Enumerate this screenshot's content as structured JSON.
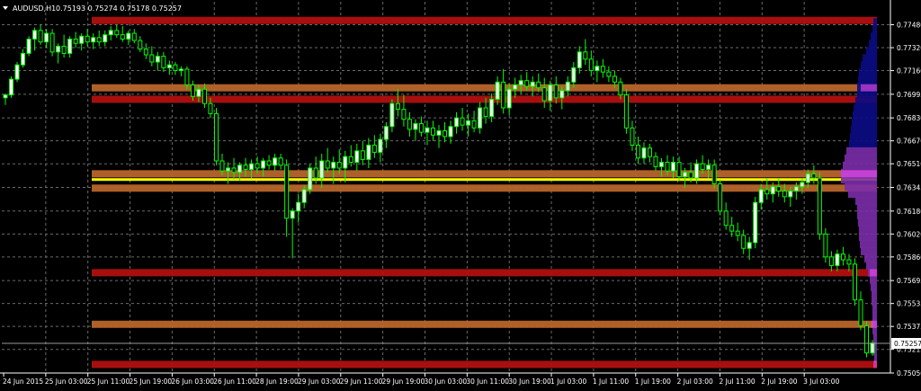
{
  "chart_header": {
    "symbol": "AUDUSD,H1",
    "ohlc": "0.75193 0.75274 0.75178 0.75257",
    "menu_icon": "triangle-down-icon"
  },
  "colors": {
    "background": "#000000",
    "grid": "#6b6b6b",
    "candle": "#00ff00",
    "bull_body": "#ffffff",
    "bear_body": "#000000",
    "orange_level": "#b8652a",
    "red_level": "#b01010",
    "yellow_level": "#ffff00",
    "profile_navy": "#0b0b85",
    "profile_purple": "#7a2ca8",
    "profile_pink": "#ff4fff",
    "axis_text": "#ffffff"
  },
  "chart_data": {
    "type": "candlestick",
    "grid": true,
    "ylim": [
      0.7505,
      0.7764
    ],
    "y_ticks": [
      "0.77480",
      "0.77320",
      "0.77160",
      "0.76995",
      "0.76830",
      "0.76670",
      "0.76510",
      "0.76345",
      "0.76180",
      "0.76020",
      "0.75860",
      "0.75695",
      "0.75535",
      "0.75375",
      "0.75215",
      "0.75050"
    ],
    "current_price": "0.75257",
    "x_ticks": [
      "24 Jun 2015",
      "25 Jun 03:00",
      "25 Jun 11:00",
      "25 Jun 19:00",
      "26 Jun 03:00",
      "26 Jun 11:00",
      "28 Jun 19:00",
      "29 Jun 03:00",
      "29 Jun 11:00",
      "29 Jun 19:00",
      "30 Jun 03:00",
      "30 Jun 11:00",
      "30 Jun 19:00",
      "1 Jul 03:00",
      "1 Jul 11:00",
      "1 Jul 19:00",
      "2 Jul 03:00",
      "2 Jul 11:00",
      "2 Jul 19:00",
      "3 Jul 03:00"
    ],
    "levels": [
      {
        "price": 0.7751,
        "color": "red"
      },
      {
        "price": 0.7704,
        "color": "orange"
      },
      {
        "price": 0.7696,
        "color": "red"
      },
      {
        "price": 0.7644,
        "color": "orange"
      },
      {
        "price": 0.764,
        "color": "yellow"
      },
      {
        "price": 0.7634,
        "color": "orange"
      },
      {
        "price": 0.7575,
        "color": "red"
      },
      {
        "price": 0.7539,
        "color": "orange"
      },
      {
        "price": 0.7511,
        "color": "red"
      }
    ],
    "candles": [
      [
        0.7697,
        0.77,
        0.7692,
        0.7699
      ],
      [
        0.7699,
        0.7712,
        0.7697,
        0.771
      ],
      [
        0.771,
        0.7722,
        0.7708,
        0.772
      ],
      [
        0.772,
        0.7731,
        0.7718,
        0.7728
      ],
      [
        0.7728,
        0.774,
        0.7726,
        0.7738
      ],
      [
        0.7738,
        0.7746,
        0.773,
        0.7744
      ],
      [
        0.7744,
        0.7748,
        0.7734,
        0.7736
      ],
      [
        0.7736,
        0.7745,
        0.7732,
        0.7742
      ],
      [
        0.7742,
        0.7745,
        0.7726,
        0.7729
      ],
      [
        0.7729,
        0.7735,
        0.7721,
        0.7733
      ],
      [
        0.7733,
        0.7741,
        0.7725,
        0.7728
      ],
      [
        0.7728,
        0.774,
        0.7725,
        0.7738
      ],
      [
        0.7738,
        0.7743,
        0.7732,
        0.7735
      ],
      [
        0.7735,
        0.7742,
        0.773,
        0.774
      ],
      [
        0.774,
        0.7745,
        0.7733,
        0.7736
      ],
      [
        0.7736,
        0.7742,
        0.7731,
        0.7739
      ],
      [
        0.7739,
        0.7744,
        0.7733,
        0.7736
      ],
      [
        0.7736,
        0.7744,
        0.7733,
        0.7741
      ],
      [
        0.7741,
        0.7747,
        0.7737,
        0.7744
      ],
      [
        0.7744,
        0.7748,
        0.7739,
        0.7741
      ],
      [
        0.7741,
        0.7747,
        0.7736,
        0.7738
      ],
      [
        0.7738,
        0.7744,
        0.7734,
        0.7742
      ],
      [
        0.7742,
        0.7745,
        0.7735,
        0.7737
      ],
      [
        0.7737,
        0.774,
        0.7729,
        0.7731
      ],
      [
        0.7731,
        0.7735,
        0.7724,
        0.7727
      ],
      [
        0.7727,
        0.7733,
        0.7719,
        0.7722
      ],
      [
        0.7722,
        0.7729,
        0.7716,
        0.7726
      ],
      [
        0.7726,
        0.7729,
        0.7715,
        0.7718
      ],
      [
        0.7718,
        0.7723,
        0.7713,
        0.772
      ],
      [
        0.772,
        0.7722,
        0.7713,
        0.7716
      ],
      [
        0.7716,
        0.7719,
        0.7712,
        0.7717
      ],
      [
        0.7717,
        0.7719,
        0.7703,
        0.7706
      ],
      [
        0.7706,
        0.7709,
        0.7695,
        0.7698
      ],
      [
        0.7698,
        0.7706,
        0.7694,
        0.7703
      ],
      [
        0.7703,
        0.7707,
        0.769,
        0.7693
      ],
      [
        0.7693,
        0.7697,
        0.7683,
        0.7686
      ],
      [
        0.7686,
        0.769,
        0.765,
        0.7653
      ],
      [
        0.7653,
        0.7658,
        0.7643,
        0.7646
      ],
      [
        0.7646,
        0.7652,
        0.7637,
        0.7648
      ],
      [
        0.7648,
        0.7655,
        0.764,
        0.7645
      ],
      [
        0.7645,
        0.7652,
        0.7639,
        0.765
      ],
      [
        0.765,
        0.7655,
        0.7642,
        0.7647
      ],
      [
        0.7647,
        0.7654,
        0.7641,
        0.7651
      ],
      [
        0.7651,
        0.7656,
        0.7644,
        0.7648
      ],
      [
        0.7648,
        0.7655,
        0.7642,
        0.7653
      ],
      [
        0.7653,
        0.7657,
        0.7647,
        0.765
      ],
      [
        0.765,
        0.7658,
        0.7646,
        0.7655
      ],
      [
        0.7655,
        0.7658,
        0.7647,
        0.765
      ],
      [
        0.765,
        0.7654,
        0.76,
        0.7613
      ],
      [
        0.7613,
        0.762,
        0.7585,
        0.7618
      ],
      [
        0.7618,
        0.763,
        0.761,
        0.7624
      ],
      [
        0.7624,
        0.7636,
        0.762,
        0.7633
      ],
      [
        0.7633,
        0.7651,
        0.763,
        0.7648
      ],
      [
        0.7648,
        0.7656,
        0.7637,
        0.7641
      ],
      [
        0.7641,
        0.7658,
        0.7634,
        0.7653
      ],
      [
        0.7653,
        0.7662,
        0.7645,
        0.7648
      ],
      [
        0.7648,
        0.7656,
        0.7637,
        0.7652
      ],
      [
        0.7652,
        0.7661,
        0.7644,
        0.7648
      ],
      [
        0.7648,
        0.766,
        0.7638,
        0.7656
      ],
      [
        0.7656,
        0.7664,
        0.7649,
        0.7652
      ],
      [
        0.7652,
        0.7665,
        0.7646,
        0.766
      ],
      [
        0.766,
        0.7667,
        0.765,
        0.7654
      ],
      [
        0.7654,
        0.7669,
        0.7648,
        0.7664
      ],
      [
        0.7664,
        0.7671,
        0.7655,
        0.7659
      ],
      [
        0.7659,
        0.7672,
        0.7652,
        0.7668
      ],
      [
        0.7668,
        0.768,
        0.7662,
        0.7677
      ],
      [
        0.7677,
        0.7696,
        0.7673,
        0.7693
      ],
      [
        0.7693,
        0.7703,
        0.7684,
        0.7689
      ],
      [
        0.7689,
        0.7699,
        0.7677,
        0.7682
      ],
      [
        0.7682,
        0.7687,
        0.767,
        0.7675
      ],
      [
        0.7675,
        0.7682,
        0.7667,
        0.7679
      ],
      [
        0.7679,
        0.7684,
        0.767,
        0.7673
      ],
      [
        0.7673,
        0.7681,
        0.7664,
        0.7676
      ],
      [
        0.7676,
        0.7681,
        0.7667,
        0.7671
      ],
      [
        0.7671,
        0.7678,
        0.7662,
        0.7674
      ],
      [
        0.7674,
        0.768,
        0.7666,
        0.767
      ],
      [
        0.767,
        0.7681,
        0.7665,
        0.7677
      ],
      [
        0.7677,
        0.7687,
        0.7672,
        0.7683
      ],
      [
        0.7683,
        0.769,
        0.7674,
        0.7678
      ],
      [
        0.7678,
        0.7686,
        0.767,
        0.7681
      ],
      [
        0.7681,
        0.7688,
        0.7673,
        0.7676
      ],
      [
        0.7676,
        0.7694,
        0.7672,
        0.769
      ],
      [
        0.769,
        0.7697,
        0.7679,
        0.7684
      ],
      [
        0.7684,
        0.77,
        0.768,
        0.7696
      ],
      [
        0.7696,
        0.7712,
        0.7692,
        0.7708
      ],
      [
        0.7708,
        0.7717,
        0.7686,
        0.769
      ],
      [
        0.769,
        0.7707,
        0.7685,
        0.7703
      ],
      [
        0.7703,
        0.7711,
        0.7697,
        0.7706
      ],
      [
        0.7706,
        0.7713,
        0.77,
        0.7709
      ],
      [
        0.7709,
        0.7715,
        0.7702,
        0.7705
      ],
      [
        0.7705,
        0.7712,
        0.7698,
        0.7708
      ],
      [
        0.7708,
        0.7714,
        0.7701,
        0.7704
      ],
      [
        0.7704,
        0.7711,
        0.769,
        0.7695
      ],
      [
        0.7695,
        0.7709,
        0.7688,
        0.7706
      ],
      [
        0.7706,
        0.7712,
        0.7693,
        0.7697
      ],
      [
        0.7697,
        0.7705,
        0.7689,
        0.7702
      ],
      [
        0.7702,
        0.7712,
        0.7698,
        0.7708
      ],
      [
        0.7708,
        0.7722,
        0.7704,
        0.7718
      ],
      [
        0.7718,
        0.7733,
        0.7714,
        0.7729
      ],
      [
        0.7729,
        0.7738,
        0.772,
        0.7724
      ],
      [
        0.7724,
        0.773,
        0.7712,
        0.7716
      ],
      [
        0.7716,
        0.7723,
        0.7708,
        0.7719
      ],
      [
        0.7719,
        0.7724,
        0.7711,
        0.7715
      ],
      [
        0.7715,
        0.7719,
        0.7708,
        0.7712
      ],
      [
        0.7712,
        0.7716,
        0.7704,
        0.7708
      ],
      [
        0.7708,
        0.7711,
        0.7696,
        0.7699
      ],
      [
        0.7699,
        0.7703,
        0.7672,
        0.7676
      ],
      [
        0.7676,
        0.7681,
        0.766,
        0.7664
      ],
      [
        0.7664,
        0.767,
        0.7651,
        0.7655
      ],
      [
        0.7655,
        0.7666,
        0.7651,
        0.7662
      ],
      [
        0.7662,
        0.7665,
        0.7652,
        0.7656
      ],
      [
        0.7656,
        0.7659,
        0.7646,
        0.7649
      ],
      [
        0.7649,
        0.7655,
        0.7642,
        0.7652
      ],
      [
        0.7652,
        0.7657,
        0.7643,
        0.7646
      ],
      [
        0.7646,
        0.7656,
        0.7641,
        0.7652
      ],
      [
        0.7652,
        0.7656,
        0.7639,
        0.7642
      ],
      [
        0.7642,
        0.7648,
        0.7634,
        0.7645
      ],
      [
        0.7645,
        0.7652,
        0.7638,
        0.7641
      ],
      [
        0.7641,
        0.7654,
        0.7637,
        0.7651
      ],
      [
        0.7651,
        0.7657,
        0.7644,
        0.7647
      ],
      [
        0.7647,
        0.7654,
        0.7641,
        0.765
      ],
      [
        0.765,
        0.7654,
        0.7634,
        0.7637
      ],
      [
        0.7637,
        0.764,
        0.7615,
        0.7618
      ],
      [
        0.7618,
        0.7624,
        0.7605,
        0.7608
      ],
      [
        0.7608,
        0.7614,
        0.76,
        0.7604
      ],
      [
        0.7604,
        0.761,
        0.7597,
        0.7601
      ],
      [
        0.7601,
        0.7605,
        0.7588,
        0.7592
      ],
      [
        0.7592,
        0.76,
        0.7584,
        0.7596
      ],
      [
        0.7596,
        0.7628,
        0.7592,
        0.7624
      ],
      [
        0.7624,
        0.7637,
        0.7619,
        0.7633
      ],
      [
        0.7633,
        0.7641,
        0.7626,
        0.763
      ],
      [
        0.763,
        0.7638,
        0.7624,
        0.7635
      ],
      [
        0.7635,
        0.7641,
        0.7628,
        0.7632
      ],
      [
        0.7632,
        0.7637,
        0.7624,
        0.7628
      ],
      [
        0.7628,
        0.7635,
        0.7621,
        0.7632
      ],
      [
        0.7632,
        0.7638,
        0.7626,
        0.7635
      ],
      [
        0.7635,
        0.7641,
        0.763,
        0.7638
      ],
      [
        0.7638,
        0.7647,
        0.7634,
        0.7644
      ],
      [
        0.7644,
        0.765,
        0.7637,
        0.7641
      ],
      [
        0.7641,
        0.7645,
        0.7598,
        0.7602
      ],
      [
        0.7602,
        0.7606,
        0.7582,
        0.7586
      ],
      [
        0.7586,
        0.759,
        0.7576,
        0.758
      ],
      [
        0.758,
        0.7591,
        0.7576,
        0.7588
      ],
      [
        0.7588,
        0.7593,
        0.758,
        0.7584
      ],
      [
        0.7584,
        0.7588,
        0.7576,
        0.7581
      ],
      [
        0.7581,
        0.7585,
        0.7552,
        0.7556
      ],
      [
        0.7556,
        0.7562,
        0.7535,
        0.7538
      ],
      [
        0.7538,
        0.7541,
        0.7516,
        0.7519
      ],
      [
        0.7519,
        0.7528,
        0.7517,
        0.7526
      ]
    ]
  }
}
